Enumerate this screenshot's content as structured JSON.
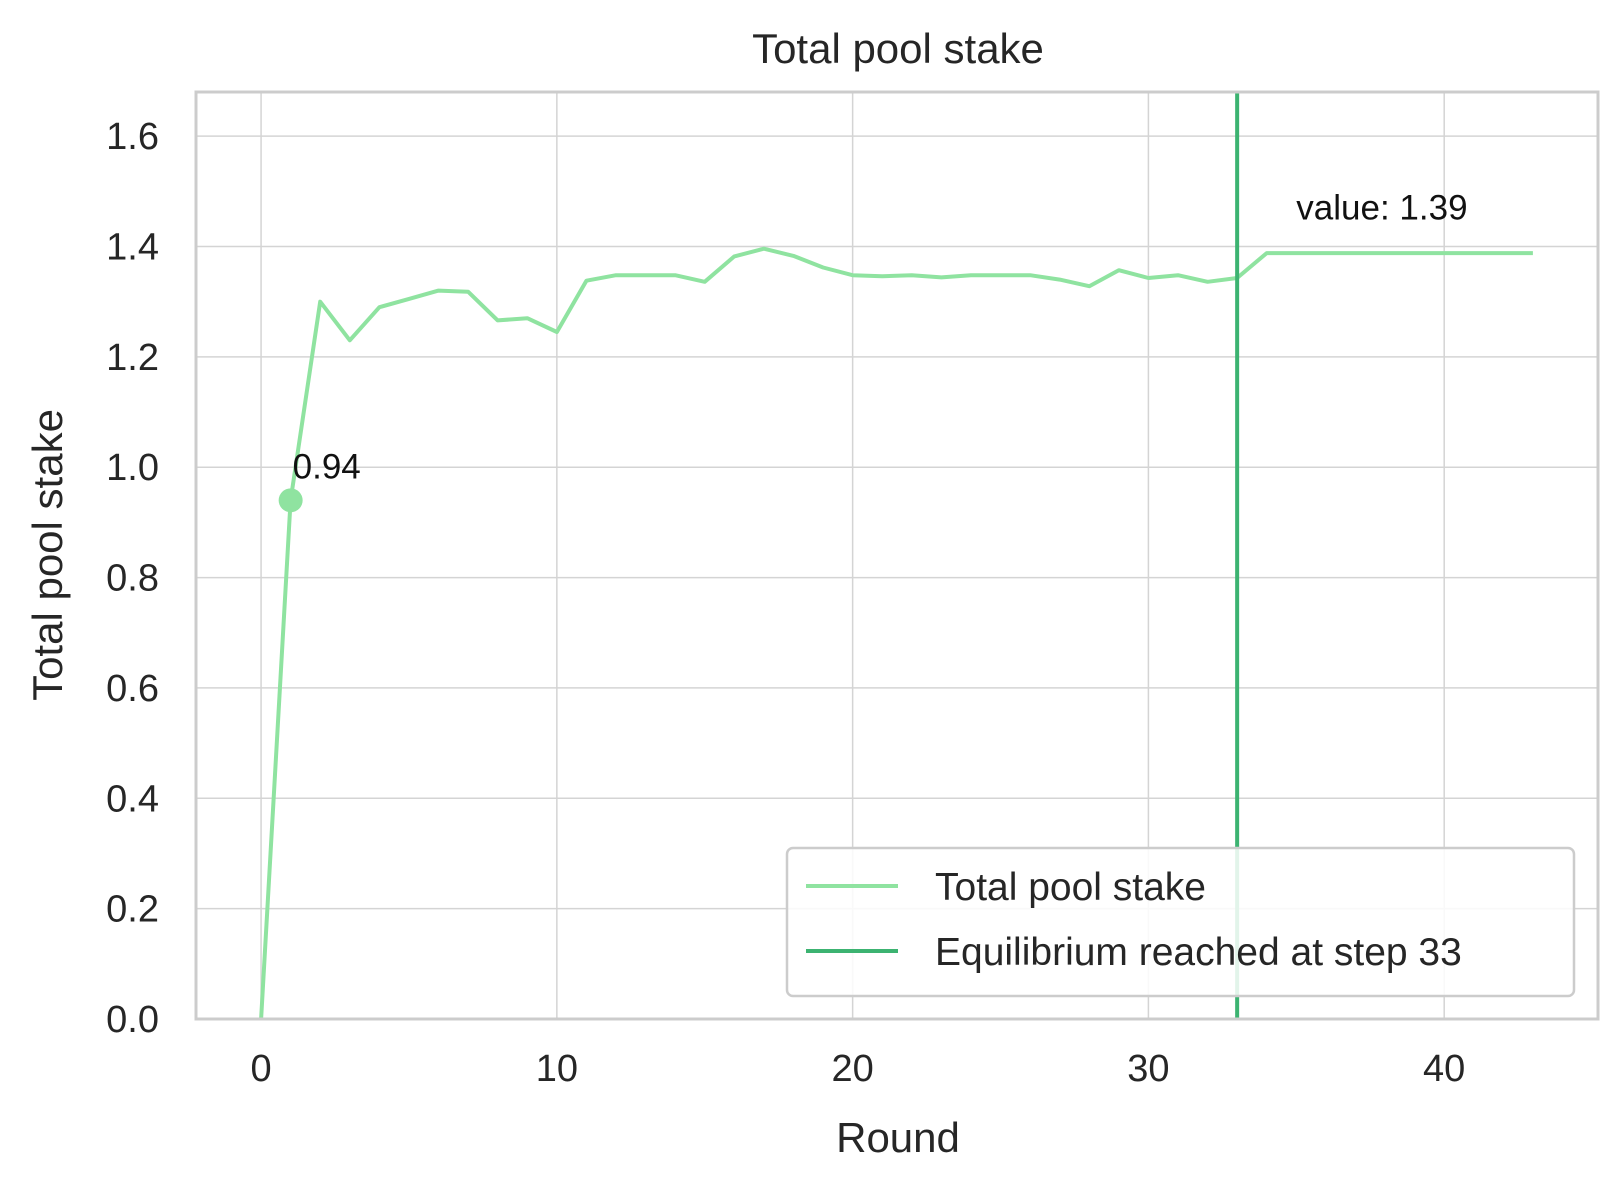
{
  "chart_data": {
    "type": "line",
    "title": "Total pool stake",
    "xlabel": "Round",
    "ylabel": "Total pool stake",
    "xlim": [
      -2.2,
      45.2
    ],
    "ylim": [
      0,
      1.68
    ],
    "xticks": [
      0,
      10,
      20,
      30,
      40
    ],
    "xtick_labels": [
      "0",
      "10",
      "20",
      "30",
      "40"
    ],
    "yticks": [
      0.0,
      0.2,
      0.4,
      0.6,
      0.8,
      1.0,
      1.2,
      1.4,
      1.6
    ],
    "ytick_labels": [
      "0.0",
      "0.2",
      "0.4",
      "0.6",
      "0.8",
      "1.0",
      "1.2",
      "1.4",
      "1.6"
    ],
    "grid": true,
    "legend_position": "lower-right",
    "series": [
      {
        "name": "Total pool stake",
        "color": "#8fe3a0",
        "x": [
          0,
          1,
          2,
          3,
          4,
          5,
          6,
          7,
          8,
          9,
          10,
          11,
          12,
          13,
          14,
          15,
          16,
          17,
          18,
          19,
          20,
          21,
          22,
          23,
          24,
          25,
          26,
          27,
          28,
          29,
          30,
          31,
          32,
          33,
          34,
          35,
          36,
          37,
          38,
          39,
          40,
          41,
          42,
          43
        ],
        "y": [
          0.0,
          0.94,
          1.3,
          1.23,
          1.29,
          1.305,
          1.32,
          1.318,
          1.266,
          1.27,
          1.245,
          1.338,
          1.348,
          1.348,
          1.348,
          1.336,
          1.382,
          1.396,
          1.383,
          1.362,
          1.348,
          1.346,
          1.348,
          1.344,
          1.348,
          1.348,
          1.348,
          1.34,
          1.328,
          1.357,
          1.343,
          1.348,
          1.336,
          1.343,
          1.388,
          1.388,
          1.388,
          1.388,
          1.388,
          1.388,
          1.388,
          1.388,
          1.388,
          1.388
        ]
      }
    ],
    "vertical_line": {
      "name": "Equilibrium reached at step 33",
      "x": 33,
      "color": "#3cb371"
    },
    "marker": {
      "x": 1,
      "y": 0.94,
      "label": "0.94"
    },
    "end_annotation": {
      "text": "value: 1.39",
      "x": 35,
      "y": 1.44
    }
  }
}
